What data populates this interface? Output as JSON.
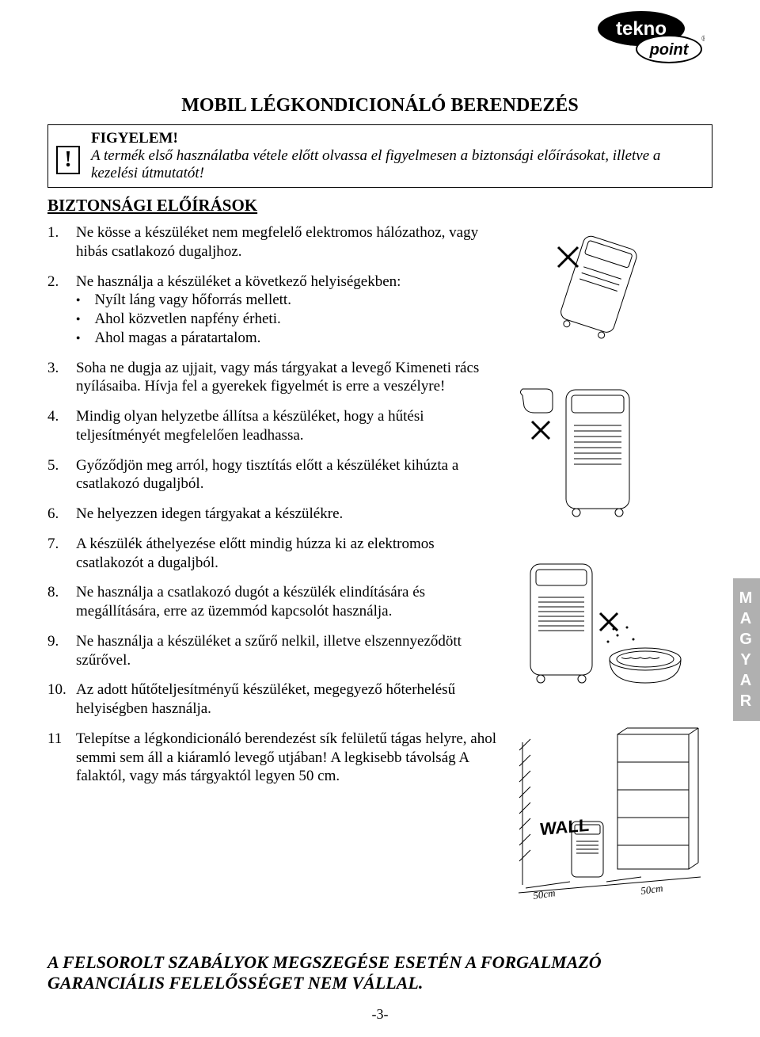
{
  "logo": {
    "line1": "tekno",
    "line2": "point"
  },
  "title": "MOBIL LÉGKONDICIONÁLÓ BERENDEZÉS",
  "warning": {
    "icon": "!",
    "heading": "FIGYELEM!",
    "body": "A termék első használatba vétele előtt olvassa el figyelmesen a biztonsági előírásokat, illetve a kezelési útmutatót!"
  },
  "section_heading": "BIZTONSÁGI ELŐÍRÁSOK",
  "rules": [
    {
      "n": "1.",
      "text": "Ne kösse a készüléket nem megfelelő elektromos hálózathoz, vagy hibás csatlakozó dugaljhoz."
    },
    {
      "n": "2.",
      "text": "Ne használja a készüléket a következő helyiségekben:",
      "sub": [
        "Nyílt láng vagy hőforrás mellett.",
        "Ahol közvetlen napfény érheti.",
        "Ahol magas a páratartalom."
      ]
    },
    {
      "n": "3.",
      "text": "Soha ne dugja az ujjait, vagy más tárgyakat a levegő Kimeneti rács nyílásaiba. Hívja fel a gyerekek figyelmét is erre a veszélyre!"
    },
    {
      "n": "4.",
      "text": "Mindig olyan helyzetbe állítsa a készüléket, hogy a hűtési teljesítményét megfelelően leadhassa."
    },
    {
      "n": "5.",
      "text": "Győződjön meg arról, hogy tisztítás előtt a készüléket kihúzta a csatlakozó dugaljból."
    },
    {
      "n": "6.",
      "text": "Ne helyezzen idegen tárgyakat a készülékre."
    },
    {
      "n": "7.",
      "text": "A készülék áthelyezése előtt mindig húzza ki az elektromos csatlakozót a dugaljból."
    },
    {
      "n": "8.",
      "text": "Ne használja a csatlakozó dugót a készülék elindítására és megállítására, erre az üzemmód kapcsolót használja."
    },
    {
      "n": "9.",
      "text": "Ne használja a készüléket a szűrő nelkil, illetve elszennyeződött szűrővel."
    },
    {
      "n": "10.",
      "text": "Az adott hűtőteljesítményű készüléket,  megegyező hőterhelésű helyiségben használja."
    },
    {
      "n": "11",
      "text": "Telepítse a légkondicionáló berendezést sík felületű tágas helyre, ahol semmi sem áll a kiáramló levegő utjában! A legkisebb távolság A falaktól, vagy más tárgyaktól legyen 50 cm.",
      "wide": true
    }
  ],
  "side_tab": [
    "M",
    "A",
    "G",
    "Y",
    "A",
    "R"
  ],
  "fig_labels": {
    "wall": "WALL",
    "dist": "50cm"
  },
  "disclaimer": "A FELSOROLT SZABÁLYOK MEGSZEGÉSE ESETÉN A FORGALMAZÓ GARANCIÁLIS FELELŐSSÉGET NEM VÁLLAL.",
  "page_number": "-3-",
  "colors": {
    "text": "#000000",
    "bg": "#ffffff",
    "tab_bg": "#b0b0b0",
    "tab_fg": "#ffffff"
  }
}
